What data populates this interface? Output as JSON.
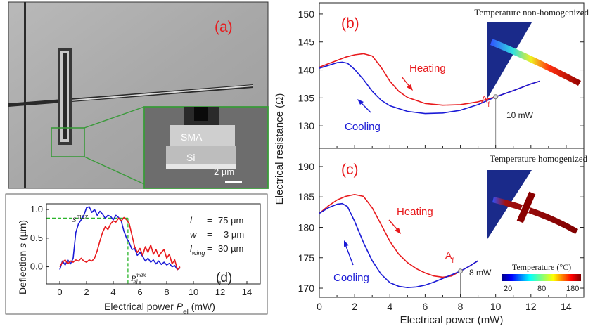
{
  "panels": {
    "a": {
      "label": "(a)",
      "inset_labels": [
        "SMA",
        "Si"
      ],
      "scale_bar": "2 µm"
    },
    "d": {
      "label": "(d)",
      "params": [
        {
          "sym": "l",
          "eq": "=",
          "val": "75 µm"
        },
        {
          "sym": "w",
          "eq": "=",
          "val": "3 µm"
        },
        {
          "sym": "l",
          "sub": "wing",
          "eq": "=",
          "val": "30 µm"
        }
      ],
      "smax_label": "s",
      "smax_sup": "max",
      "pel_label": "P",
      "pel_sub": "el",
      "pel_sup": "max"
    },
    "b": {
      "label": "(b)",
      "note": "Temperature non-homogenized",
      "heating_label": "Heating",
      "cooling_label": "Cooling",
      "af_label": "A",
      "af_sub": "f",
      "marker_label": "10 mW"
    },
    "c": {
      "label": "(c)",
      "note": "Temperature homogenized",
      "heating_label": "Heating",
      "cooling_label": "Cooling",
      "af_label": "A",
      "af_sub": "f",
      "marker_label": "8 mW",
      "colorbar_title": "Temperature (°C)",
      "colorbar_ticks": [
        "20",
        "80",
        "180"
      ]
    }
  },
  "colors": {
    "heating": "#e8191c",
    "cooling": "#1a1ad6",
    "label_red": "#e8191c",
    "guide_green": "#2bb52b",
    "inset_green": "#3a9a3a"
  },
  "chart_data": [
    {
      "id": "d",
      "type": "line",
      "xlabel": "Electrical power",
      "xlabel_sym": "P",
      "xlabel_sub": "el",
      "xlabel_unit": " (mW)",
      "ylabel": "Deflection",
      "ylabel_sym": "s",
      "ylabel_unit": " (µm)",
      "xlim": [
        -1,
        15
      ],
      "ylim": [
        -0.3,
        1.1
      ],
      "xticks": [
        0,
        2,
        4,
        6,
        8,
        10,
        12,
        14
      ],
      "yticks": [
        0.0,
        0.5,
        1.0
      ],
      "ytick_labels": [
        "0.0",
        "0.5",
        "1.0"
      ],
      "guides": {
        "smax": 0.85,
        "pel_max": 5.1
      },
      "series": [
        {
          "color": "blue",
          "x": [
            0.0,
            0.2,
            0.4,
            0.6,
            0.8,
            1.0,
            1.2,
            1.4,
            1.6,
            1.8,
            2.0,
            2.2,
            2.4,
            2.6,
            2.8,
            3.0,
            3.2,
            3.4,
            3.6,
            3.8,
            4.0,
            4.2,
            4.4,
            4.6,
            4.8,
            5.0,
            5.2,
            5.4,
            5.6,
            5.8,
            6.0,
            6.2,
            6.4,
            6.6,
            6.8,
            7.0,
            7.2,
            7.4,
            7.6,
            7.8,
            8.0,
            8.2,
            8.4,
            8.6,
            8.8,
            9.0
          ],
          "y": [
            -0.05,
            0.1,
            0.03,
            0.12,
            0.05,
            0.15,
            0.6,
            0.75,
            0.82,
            0.9,
            1.03,
            1.05,
            0.95,
            1.0,
            0.9,
            0.97,
            0.92,
            0.85,
            0.9,
            0.88,
            0.82,
            0.9,
            0.86,
            0.8,
            0.62,
            0.5,
            0.42,
            0.3,
            0.32,
            0.2,
            0.25,
            0.18,
            0.1,
            0.15,
            0.08,
            0.12,
            0.05,
            0.1,
            0.04,
            0.08,
            0.03,
            0.06,
            0.0,
            0.02,
            -0.05,
            -0.02
          ]
        },
        {
          "color": "red",
          "x": [
            0.0,
            0.2,
            0.4,
            0.6,
            0.8,
            1.0,
            1.2,
            1.4,
            1.6,
            1.8,
            2.0,
            2.2,
            2.4,
            2.6,
            2.8,
            3.0,
            3.2,
            3.4,
            3.6,
            3.8,
            4.0,
            4.2,
            4.4,
            4.6,
            4.8,
            5.0,
            5.2,
            5.4,
            5.6,
            5.8,
            6.0,
            6.2,
            6.4,
            6.6,
            6.8,
            7.0,
            7.2,
            7.4,
            7.6,
            7.8,
            8.0,
            8.2,
            8.4,
            8.6,
            8.8,
            9.0
          ],
          "y": [
            0.0,
            0.08,
            0.12,
            0.05,
            0.1,
            0.08,
            0.12,
            0.1,
            0.15,
            0.1,
            0.08,
            0.12,
            0.1,
            0.15,
            0.28,
            0.45,
            0.6,
            0.7,
            0.65,
            0.75,
            0.8,
            0.78,
            0.85,
            0.8,
            0.86,
            0.82,
            0.75,
            0.55,
            0.35,
            0.25,
            0.32,
            0.2,
            0.35,
            0.25,
            0.38,
            0.22,
            0.3,
            0.18,
            0.25,
            0.3,
            0.15,
            0.22,
            0.05,
            0.12,
            -0.05,
            0.0
          ]
        }
      ]
    },
    {
      "id": "b",
      "type": "line",
      "ylabel": "Electrical resistance (Ω)",
      "xlim": [
        0,
        15
      ],
      "ylim": [
        126,
        152
      ],
      "yticks": [
        130,
        135,
        140,
        145,
        150
      ],
      "marker": {
        "x": 10,
        "y": 135.2
      },
      "series": [
        {
          "name": "Heating",
          "color": "red",
          "x": [
            0,
            0.5,
            1.0,
            1.5,
            2.0,
            2.5,
            3.0,
            3.5,
            4.0,
            4.5,
            5.0,
            6.0,
            7.0,
            8.0,
            9.0,
            10.0,
            11.0,
            12.0,
            12.5
          ],
          "y": [
            140.5,
            141.1,
            141.7,
            142.3,
            142.7,
            142.9,
            142.5,
            140.5,
            138.0,
            136.2,
            135.1,
            134.0,
            133.7,
            133.8,
            134.3,
            135.2,
            136.3,
            137.5,
            138.0
          ]
        },
        {
          "name": "Cooling",
          "color": "blue",
          "x": [
            0,
            0.5,
            1.0,
            1.3,
            1.6,
            2.0,
            2.5,
            3.0,
            3.5,
            4.0,
            5.0,
            6.0,
            7.0,
            8.0,
            9.0,
            10.0,
            11.0,
            12.0,
            12.5
          ],
          "y": [
            140.3,
            140.8,
            141.3,
            141.4,
            141.2,
            140.1,
            138.3,
            136.2,
            134.6,
            133.6,
            132.6,
            132.2,
            132.3,
            132.8,
            133.8,
            135.2,
            136.3,
            137.5,
            138.0
          ]
        }
      ]
    },
    {
      "id": "c",
      "type": "line",
      "xlabel": "Electrical power (mW)",
      "xlim": [
        0,
        15
      ],
      "ylim": [
        168.5,
        193
      ],
      "xticks": [
        0,
        2,
        4,
        6,
        8,
        10,
        12,
        14
      ],
      "yticks": [
        170,
        175,
        180,
        185,
        190
      ],
      "marker": {
        "x": 8,
        "y": 172.8
      },
      "series": [
        {
          "name": "Heating",
          "color": "red",
          "x": [
            0,
            0.5,
            1.0,
            1.5,
            2.0,
            2.5,
            3.0,
            3.5,
            4.0,
            4.5,
            5.0,
            5.5,
            6.0,
            6.5,
            7.0,
            7.5,
            8.0,
            8.5,
            9.0
          ],
          "y": [
            182.3,
            183.5,
            184.5,
            185.1,
            185.4,
            185.1,
            183.2,
            180.5,
            177.7,
            175.6,
            174.2,
            173.2,
            172.5,
            172.0,
            171.8,
            172.0,
            172.8,
            173.6,
            174.5
          ]
        },
        {
          "name": "Cooling",
          "color": "blue",
          "x": [
            0,
            0.5,
            1.0,
            1.3,
            1.6,
            2.0,
            2.5,
            3.0,
            3.5,
            4.0,
            4.5,
            5.0,
            5.5,
            6.0,
            6.5,
            7.0,
            7.5,
            8.0,
            8.5,
            9.0
          ],
          "y": [
            182.3,
            183.2,
            183.8,
            183.9,
            183.4,
            181.0,
            177.5,
            174.5,
            172.3,
            170.9,
            170.3,
            170.1,
            170.2,
            170.5,
            171.0,
            171.6,
            172.2,
            172.8,
            173.6,
            174.5
          ]
        }
      ]
    }
  ]
}
